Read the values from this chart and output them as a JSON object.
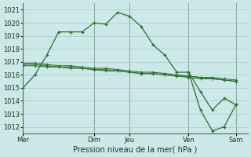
{
  "background_color": "#cce8e8",
  "plot_bg_color": "#cce8e8",
  "grid_color": "#aacaca",
  "line_color": "#2d6e2d",
  "xlabel": "Pression niveau de la mer( hPa )",
  "ylim": [
    1011.5,
    1021.5
  ],
  "yticks": [
    1012,
    1013,
    1014,
    1015,
    1016,
    1017,
    1018,
    1019,
    1020,
    1021
  ],
  "xtick_labels": [
    "Mer",
    "Dim",
    "Jeu",
    "Ven",
    "Sam"
  ],
  "xtick_positions": [
    0,
    6,
    9,
    14,
    18
  ],
  "x_vlines": [
    0,
    6,
    9,
    14,
    18
  ],
  "xlim": [
    0,
    19
  ],
  "series_main": {
    "x": [
      0,
      1,
      2,
      3,
      4,
      5,
      6,
      7,
      8,
      9,
      10,
      11,
      12,
      13,
      14,
      15,
      16,
      17,
      18
    ],
    "y": [
      1015.0,
      1016.0,
      1017.5,
      1019.3,
      1019.3,
      1019.3,
      1020.0,
      1019.9,
      1020.8,
      1020.5,
      1019.7,
      1018.3,
      1017.5,
      1016.2,
      1016.2,
      1014.7,
      1013.3,
      1014.2,
      1013.7
    ]
  },
  "series_flat1": {
    "x": [
      0,
      1,
      2,
      3,
      4,
      5,
      6,
      7,
      8,
      9,
      10,
      11,
      12,
      13,
      14,
      15,
      16,
      17,
      18
    ],
    "y": [
      1016.7,
      1016.7,
      1016.6,
      1016.6,
      1016.5,
      1016.5,
      1016.4,
      1016.3,
      1016.3,
      1016.2,
      1016.1,
      1016.1,
      1016.0,
      1015.9,
      1015.9,
      1015.8,
      1015.7,
      1015.6,
      1015.5
    ]
  },
  "series_flat2": {
    "x": [
      0,
      1,
      2,
      3,
      4,
      5,
      6,
      7,
      8,
      9,
      10,
      11,
      12,
      13,
      14,
      15,
      16,
      17,
      18
    ],
    "y": [
      1016.8,
      1016.8,
      1016.7,
      1016.6,
      1016.6,
      1016.5,
      1016.4,
      1016.4,
      1016.3,
      1016.2,
      1016.1,
      1016.1,
      1016.0,
      1015.9,
      1015.8,
      1015.7,
      1015.7,
      1015.6,
      1015.5
    ]
  },
  "series_flat3": {
    "x": [
      0,
      1,
      2,
      3,
      4,
      5,
      6,
      7,
      8,
      9,
      10,
      11,
      12,
      13,
      14,
      15,
      16,
      17,
      18
    ],
    "y": [
      1016.9,
      1016.9,
      1016.8,
      1016.7,
      1016.7,
      1016.6,
      1016.5,
      1016.5,
      1016.4,
      1016.3,
      1016.2,
      1016.2,
      1016.1,
      1016.0,
      1015.9,
      1015.8,
      1015.8,
      1015.7,
      1015.6
    ]
  },
  "series_drop": {
    "x": [
      14,
      15,
      16,
      17,
      18
    ],
    "y": [
      1016.2,
      1013.3,
      1011.7,
      1012.0,
      1013.7
    ]
  },
  "xlabel_fontsize": 7,
  "ytick_fontsize": 6,
  "xtick_fontsize": 6
}
